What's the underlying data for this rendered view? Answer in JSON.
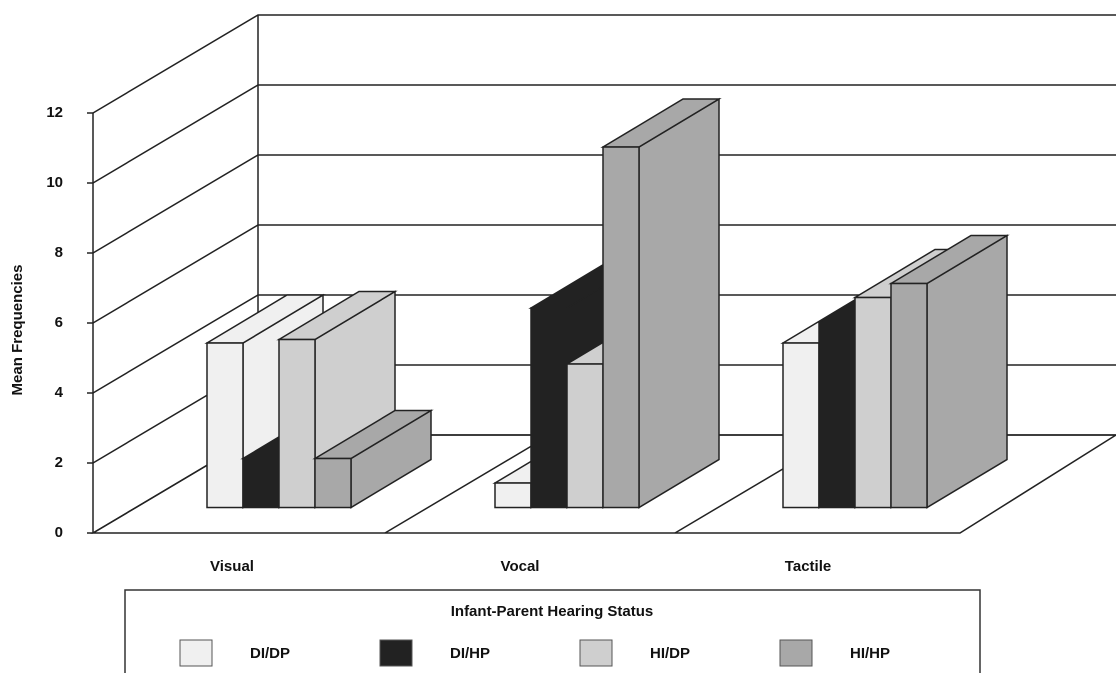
{
  "chart_data": {
    "type": "bar3d",
    "y_label": "Mean Frequencies",
    "categories": [
      "Visual",
      "Vocal",
      "Tactile"
    ],
    "series": [
      {
        "name": "DI/DP",
        "color": "#f0f0f0",
        "values": [
          4.7,
          0.7,
          4.7
        ]
      },
      {
        "name": "DI/HP",
        "color": "#222222",
        "values": [
          1.4,
          5.7,
          5.3
        ]
      },
      {
        "name": "HI/DP",
        "color": "#cfcfcf",
        "values": [
          4.8,
          4.1,
          6.0
        ]
      },
      {
        "name": "HI/HP",
        "color": "#a8a8a8",
        "values": [
          1.4,
          10.3,
          6.4
        ]
      }
    ],
    "legend_title": "Infant-Parent Hearing Status",
    "ylim": [
      0,
      12
    ],
    "yticks": [
      0,
      2,
      4,
      6,
      8,
      10,
      12
    ],
    "grid": true
  }
}
